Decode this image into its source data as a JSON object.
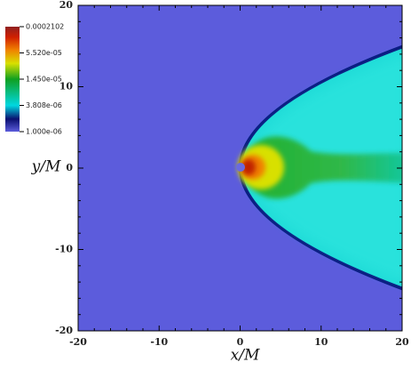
{
  "chart_data": {
    "type": "heatmap",
    "xlabel": "x/M",
    "ylabel": "y/M",
    "xlim": [
      -20,
      20
    ],
    "ylim": [
      -20,
      20
    ],
    "xticks": [
      -20,
      -10,
      0,
      10,
      20
    ],
    "yticks": [
      -20,
      -10,
      0,
      10,
      20
    ],
    "colorbar": {
      "scale": "log",
      "lim": [
        1e-06,
        0.0002102
      ],
      "ticks": [
        {
          "value": 1e-06,
          "label": "1.000e-06"
        },
        {
          "value": 3.808e-06,
          "label": "3.808e-06"
        },
        {
          "value": 1.45e-05,
          "label": "1.450e-05"
        },
        {
          "value": 5.52e-05,
          "label": "5.520e-05"
        },
        0.0002102
      ]
    }
  }
}
